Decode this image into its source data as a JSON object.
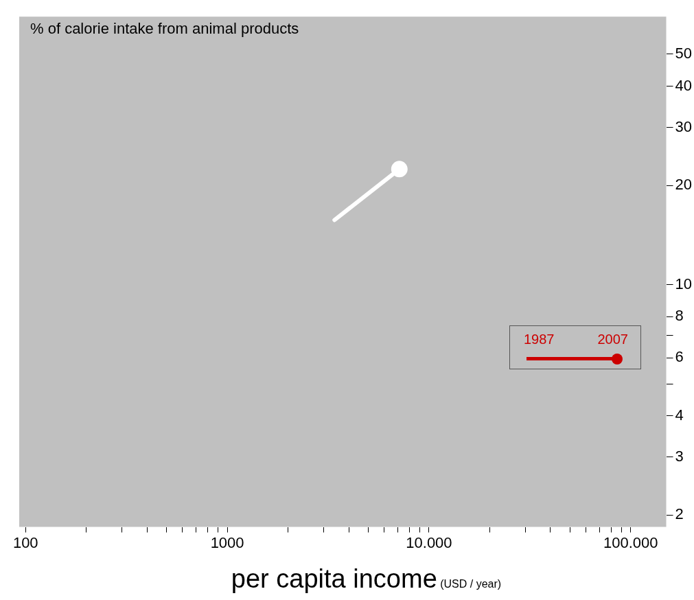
{
  "chart_data": {
    "type": "line",
    "title": "% of calorie intake from animal products",
    "xlabel": "per capita income",
    "annotations": [
      "(USD / year)",
      "1987",
      "2007"
    ],
    "series": [
      {
        "color": "#ffffff",
        "x": [
          3400,
          7130
        ],
        "values": [
          15.7,
          22.4
        ]
      }
    ],
    "marker": "circle",
    "log": "xy",
    "grid": false,
    "legend": false,
    "xlim": [
      93,
      150000
    ],
    "xticks": [
      100,
      {
        "value": 200,
        "label": null
      },
      {
        "value": 300,
        "label": null
      },
      {
        "value": 400,
        "label": null
      },
      {
        "value": 500,
        "label": null
      },
      {
        "value": 600,
        "label": null
      },
      {
        "value": 700,
        "label": null
      },
      {
        "value": 800,
        "label": null
      },
      {
        "value": 900,
        "label": null
      },
      1000,
      {
        "value": 2000,
        "label": null
      },
      {
        "value": 3000,
        "label": null
      },
      {
        "value": 4000,
        "label": null
      },
      {
        "value": 5000,
        "label": null
      },
      {
        "value": 6000,
        "label": null
      },
      {
        "value": 7000,
        "label": null
      },
      {
        "value": 8000,
        "label": null
      },
      {
        "value": 9000,
        "label": null
      },
      {
        "value": 10000,
        "label": "10.000"
      },
      {
        "value": 20000,
        "label": null
      },
      {
        "value": 30000,
        "label": null
      },
      {
        "value": 40000,
        "label": null
      },
      {
        "value": 50000,
        "label": null
      },
      {
        "value": 60000,
        "label": null
      },
      {
        "value": 70000,
        "label": null
      },
      {
        "value": 80000,
        "label": null
      },
      {
        "value": 90000,
        "label": null
      },
      {
        "value": 100000,
        "label": "100.000"
      }
    ],
    "ylim": [
      1.84,
      65
    ],
    "yticks": [
      2,
      3,
      4,
      {
        "value": 5,
        "label": null
      },
      6,
      {
        "value": 7,
        "label": null
      },
      8,
      10,
      20,
      30,
      40,
      50
    ]
  }
}
